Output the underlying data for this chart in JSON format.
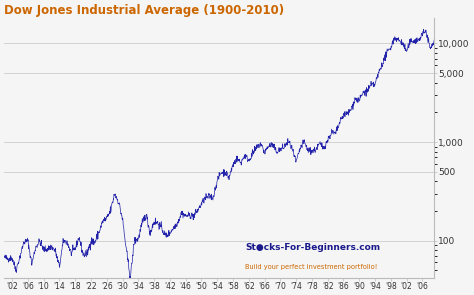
{
  "title": "Dow Jones Industrial Average (1900-2010)",
  "title_color": "#CC6600",
  "line_color": "#2222aa",
  "background_color": "#f5f5f5",
  "plot_bg_color": "#f5f5f5",
  "grid_color": "#cccccc",
  "watermark": "St●cks-For-Beginners.com",
  "watermark_sub": "Build your perfect investment portfolio!",
  "watermark_color": "#1a1a8c",
  "watermark_sub_color": "#CC6600",
  "xtick_labels": [
    "'02",
    "'06",
    "'10",
    "'14",
    "'18",
    "'22",
    "'26",
    "'30",
    "'34",
    "'38",
    "'42",
    "'46",
    "'50",
    "'54",
    "'58",
    "'62",
    "'66",
    "'70",
    "'74",
    "'78",
    "'82",
    "'86",
    "'90",
    "'94",
    "'98",
    "'02",
    "'06"
  ],
  "xtick_years": [
    1902,
    1906,
    1910,
    1914,
    1918,
    1922,
    1926,
    1930,
    1934,
    1938,
    1942,
    1946,
    1950,
    1954,
    1958,
    1962,
    1966,
    1970,
    1974,
    1978,
    1982,
    1986,
    1990,
    1994,
    1998,
    2002,
    2006
  ],
  "ytick_values": [
    100,
    500,
    1000,
    5000,
    10000
  ],
  "ytick_labels": [
    "100",
    "500",
    "1,000",
    "5,000",
    "10,000"
  ],
  "ymin": 42,
  "ymax": 18000,
  "annual_data": [
    [
      1900,
      68
    ],
    [
      1901,
      65
    ],
    [
      1902,
      67
    ],
    [
      1903,
      50
    ],
    [
      1904,
      69
    ],
    [
      1905,
      96
    ],
    [
      1906,
      100
    ],
    [
      1907,
      58
    ],
    [
      1908,
      86
    ],
    [
      1909,
      99
    ],
    [
      1910,
      81
    ],
    [
      1911,
      82
    ],
    [
      1912,
      87
    ],
    [
      1913,
      78
    ],
    [
      1914,
      54
    ],
    [
      1915,
      99
    ],
    [
      1916,
      96
    ],
    [
      1917,
      74
    ],
    [
      1918,
      83
    ],
    [
      1919,
      108
    ],
    [
      1920,
      72
    ],
    [
      1921,
      73
    ],
    [
      1922,
      99
    ],
    [
      1923,
      96
    ],
    [
      1924,
      121
    ],
    [
      1925,
      157
    ],
    [
      1926,
      166
    ],
    [
      1927,
      202
    ],
    [
      1928,
      300
    ],
    [
      1929,
      248
    ],
    [
      1930,
      165
    ],
    [
      1931,
      78
    ],
    [
      1932,
      42
    ],
    [
      1933,
      100
    ],
    [
      1934,
      104
    ],
    [
      1935,
      150
    ],
    [
      1936,
      184
    ],
    [
      1937,
      120
    ],
    [
      1938,
      155
    ],
    [
      1939,
      151
    ],
    [
      1940,
      131
    ],
    [
      1941,
      111
    ],
    [
      1942,
      120
    ],
    [
      1943,
      136
    ],
    [
      1944,
      153
    ],
    [
      1945,
      192
    ],
    [
      1946,
      177
    ],
    [
      1947,
      181
    ],
    [
      1948,
      177
    ],
    [
      1949,
      200
    ],
    [
      1950,
      235
    ],
    [
      1951,
      270
    ],
    [
      1952,
      280
    ],
    [
      1953,
      275
    ],
    [
      1954,
      405
    ],
    [
      1955,
      488
    ],
    [
      1956,
      499
    ],
    [
      1957,
      435
    ],
    [
      1958,
      584
    ],
    [
      1959,
      679
    ],
    [
      1960,
      616
    ],
    [
      1961,
      731
    ],
    [
      1962,
      652
    ],
    [
      1963,
      763
    ],
    [
      1964,
      875
    ],
    [
      1965,
      969
    ],
    [
      1966,
      786
    ],
    [
      1967,
      906
    ],
    [
      1968,
      944
    ],
    [
      1969,
      800
    ],
    [
      1970,
      839
    ],
    [
      1971,
      890
    ],
    [
      1972,
      1020
    ],
    [
      1973,
      851
    ],
    [
      1974,
      617
    ],
    [
      1975,
      852
    ],
    [
      1976,
      1005
    ],
    [
      1977,
      831
    ],
    [
      1978,
      805
    ],
    [
      1979,
      839
    ],
    [
      1980,
      964
    ],
    [
      1981,
      875
    ],
    [
      1982,
      1047
    ],
    [
      1983,
      1259
    ],
    [
      1984,
      1212
    ],
    [
      1985,
      1547
    ],
    [
      1986,
      1896
    ],
    [
      1987,
      1939
    ],
    [
      1988,
      2169
    ],
    [
      1989,
      2753
    ],
    [
      1990,
      2634
    ],
    [
      1991,
      3169
    ],
    [
      1992,
      3301
    ],
    [
      1993,
      3754
    ],
    [
      1994,
      3834
    ],
    [
      1995,
      5117
    ],
    [
      1996,
      6448
    ],
    [
      1997,
      7908
    ],
    [
      1998,
      9181
    ],
    [
      1999,
      11497
    ],
    [
      2000,
      10787
    ],
    [
      2001,
      10022
    ],
    [
      2002,
      8342
    ],
    [
      2003,
      10454
    ],
    [
      2004,
      10783
    ],
    [
      2005,
      10718
    ],
    [
      2006,
      12463
    ],
    [
      2007,
      13265
    ],
    [
      2008,
      8776
    ],
    [
      2009,
      10428
    ],
    [
      2010,
      11578
    ]
  ]
}
